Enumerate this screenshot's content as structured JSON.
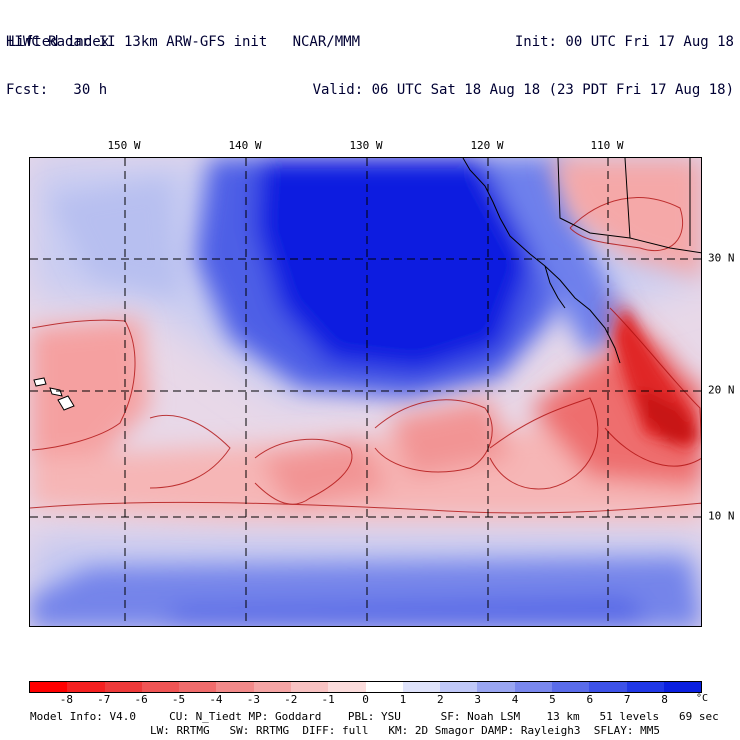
{
  "header": {
    "left_line1": "HIWC Radar II 13km ARW-GFS init   NCAR/MMM",
    "left_line2": "Fcst:   30 h",
    "right_line1": "Init: 00 UTC Fri 17 Aug 18",
    "right_line2": "Valid: 06 UTC Sat 18 Aug 18 (23 PDT Fri 17 Aug 18)",
    "field": "Lifted index"
  },
  "map": {
    "lon_labels": [
      "150 W",
      "140 W",
      "130 W",
      "120 W",
      "110 W"
    ],
    "lat_labels": [
      "30 N",
      "20 N",
      "10 N"
    ]
  },
  "colorbar": {
    "ticks": [
      "-8",
      "-7",
      "-6",
      "-5",
      "-4",
      "-3",
      "-2",
      "-1",
      "0",
      "1",
      "2",
      "3",
      "4",
      "5",
      "6",
      "7",
      "8"
    ],
    "unit": "°C",
    "colors": [
      "#ff0000",
      "#f52020",
      "#ee3a3a",
      "#f05555",
      "#f06c6c",
      "#f28a8a",
      "#f5a5a5",
      "#f8c2c2",
      "#fbdcdc",
      "#ffffff",
      "#dfe3fb",
      "#c0c8f8",
      "#9aa6f2",
      "#7a88ee",
      "#5a6cea",
      "#3d52e8",
      "#2038e6",
      "#0a1fe0"
    ]
  },
  "model_info": {
    "line1": "Model Info: V4.0     CU: N_Tiedt MP: Goddard    PBL: YSU      SF: Noah LSM    13 km   51 levels   69 sec",
    "line2": "LW: RRTMG   SW: RRTMG  DIFF: full   KM: 2D Smagor DAMP: Rayleigh3  SFLAY: MM5"
  }
}
